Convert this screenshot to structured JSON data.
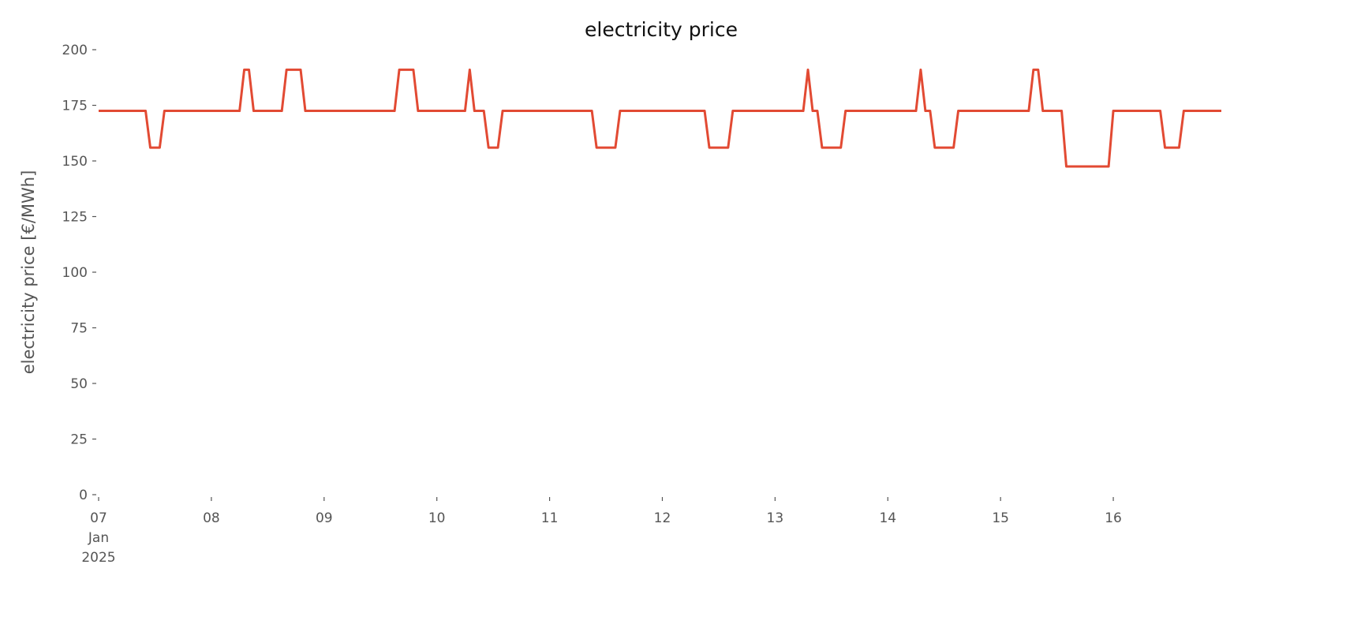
{
  "chart_data": {
    "type": "line",
    "title": "electricity price",
    "ylabel": "electricity price [€/MWh]",
    "x": [
      0,
      10,
      11,
      13,
      14,
      30,
      31,
      32,
      33,
      39,
      40,
      43,
      44,
      63,
      64,
      67,
      68,
      78,
      79,
      80,
      82,
      83,
      85,
      86,
      105,
      106,
      110,
      111,
      129,
      130,
      134,
      135,
      150,
      151,
      152,
      153,
      154,
      158,
      159,
      174,
      175,
      176,
      177,
      178,
      182,
      183,
      198,
      199,
      200,
      201,
      205,
      206,
      215,
      216,
      226,
      227,
      230,
      231,
      239
    ],
    "series": [
      {
        "name": "electricity price",
        "color": "#E24A33",
        "values": [
          172.5,
          172.5,
          156,
          156,
          172.5,
          172.5,
          191,
          191,
          172.5,
          172.5,
          191,
          191,
          172.5,
          172.5,
          191,
          191,
          172.5,
          172.5,
          191,
          172.5,
          172.5,
          156,
          156,
          172.5,
          172.5,
          156,
          156,
          172.5,
          172.5,
          156,
          156,
          172.5,
          172.5,
          191,
          172.5,
          172.5,
          156,
          156,
          172.5,
          172.5,
          191,
          172.5,
          172.5,
          156,
          156,
          172.5,
          172.5,
          191,
          191,
          172.5,
          172.5,
          147.5,
          147.5,
          172.5,
          172.5,
          156,
          156,
          172.5,
          172.5
        ]
      }
    ],
    "xlim": [
      0,
      239
    ],
    "xticks": [
      {
        "value": 0,
        "label": "07\nJan\n2025"
      },
      {
        "value": 24,
        "label": "08"
      },
      {
        "value": 48,
        "label": "09"
      },
      {
        "value": 72,
        "label": "10"
      },
      {
        "value": 96,
        "label": "11"
      },
      {
        "value": 120,
        "label": "12"
      },
      {
        "value": 144,
        "label": "13"
      },
      {
        "value": 168,
        "label": "14"
      },
      {
        "value": 192,
        "label": "15"
      },
      {
        "value": 216,
        "label": "16"
      }
    ],
    "ylim": [
      0,
      200
    ],
    "yticks": [
      0,
      25,
      50,
      75,
      100,
      125,
      150,
      175,
      200
    ],
    "grid": false
  }
}
